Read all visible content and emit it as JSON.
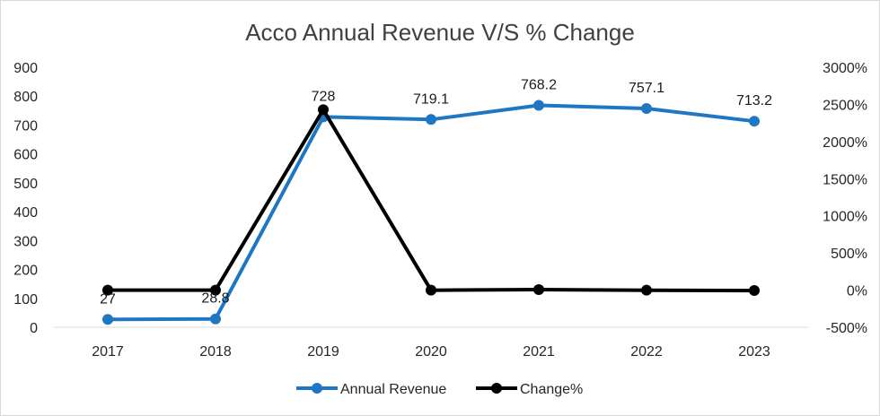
{
  "chart_data": {
    "type": "line",
    "title": "Acco Annual Revenue V/S % Change",
    "categories": [
      "2017",
      "2018",
      "2019",
      "2020",
      "2021",
      "2022",
      "2023"
    ],
    "ylim": [
      0,
      900
    ],
    "yticks": [
      0,
      100,
      200,
      300,
      400,
      500,
      600,
      700,
      800,
      900
    ],
    "ylim_right": [
      -500,
      3000
    ],
    "yticks_right": [
      -500,
      0,
      500,
      1000,
      1500,
      2000,
      2500,
      3000
    ],
    "yticks_right_labels": [
      "-500%",
      "0%",
      "500%",
      "1000%",
      "1500%",
      "2000%",
      "2500%",
      "3000%"
    ],
    "grid": false,
    "legend_position": "bottom",
    "series": [
      {
        "name": "Annual Revenue",
        "axis": "left",
        "color": "#1f77c4",
        "values": [
          27,
          28.8,
          728,
          719.1,
          768.2,
          757.1,
          713.2
        ],
        "data_labels": [
          "27",
          "28.8",
          "728",
          "719.1",
          "768.2",
          "757.1",
          "713.2"
        ]
      },
      {
        "name": "Change%",
        "axis": "right",
        "color": "#000000",
        "values": [
          0,
          0,
          2428,
          -1.2,
          6.8,
          -1.4,
          -5.8
        ]
      }
    ]
  }
}
